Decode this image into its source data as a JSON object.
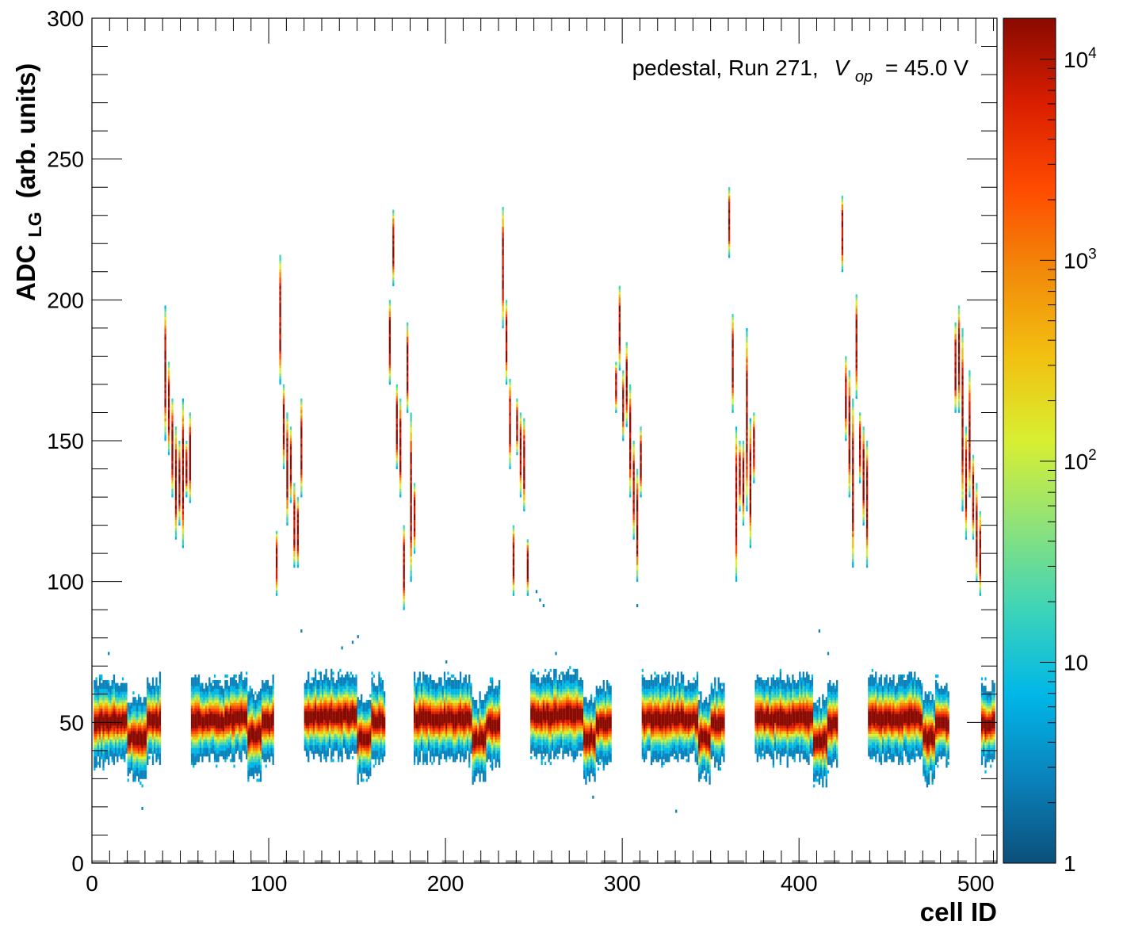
{
  "chart_data": {
    "type": "heatmap",
    "title": "",
    "annotation": {
      "text_prefix": "pedestal, Run 271,",
      "symbol": "V",
      "symbol_subscript": "op",
      "text_suffix": "= 45.0 V"
    },
    "xlabel": "cell ID",
    "ylabel_main": "ADC",
    "ylabel_sub": "LG",
    "ylabel_suffix": "(arb. units)",
    "xlim": [
      0,
      512
    ],
    "ylim": [
      0,
      300
    ],
    "x_tick_labels": [
      "0",
      "100",
      "200",
      "300",
      "400",
      "500"
    ],
    "y_tick_labels": [
      "0",
      "50",
      "100",
      "150",
      "200",
      "250",
      "300"
    ],
    "z_scale": "log",
    "zlim": [
      1,
      16000
    ],
    "colorbar_labels": [
      {
        "base": "1",
        "exp": ""
      },
      {
        "base": "10",
        "exp": ""
      },
      {
        "base": "10",
        "exp": "2"
      },
      {
        "base": "10",
        "exp": "3"
      },
      {
        "base": "10",
        "exp": "4"
      }
    ],
    "palette": [
      "#0b4f7a",
      "#0a82bb",
      "#00b7e8",
      "#3dd4b8",
      "#8ee27a",
      "#d8ef32",
      "#f2c010",
      "#f28a0a",
      "#ff4a00",
      "#d91e00",
      "#8a0a00"
    ],
    "pedestal_blocks": [
      {
        "x": [
          1,
          20
        ],
        "center": 50
      },
      {
        "x": [
          20,
          31
        ],
        "center": 44
      },
      {
        "x": [
          31,
          39
        ],
        "center": 50
      },
      {
        "x": [
          56,
          78
        ],
        "center": 50
      },
      {
        "x": [
          78,
          88
        ],
        "center": 51
      },
      {
        "x": [
          88,
          96
        ],
        "center": 45
      },
      {
        "x": [
          96,
          103
        ],
        "center": 50
      },
      {
        "x": [
          120,
          150
        ],
        "center": 52
      },
      {
        "x": [
          150,
          158
        ],
        "center": 44
      },
      {
        "x": [
          158,
          166
        ],
        "center": 50
      },
      {
        "x": [
          182,
          215
        ],
        "center": 51
      },
      {
        "x": [
          215,
          223
        ],
        "center": 44
      },
      {
        "x": [
          223,
          231
        ],
        "center": 49
      },
      {
        "x": [
          248,
          278
        ],
        "center": 52
      },
      {
        "x": [
          278,
          285
        ],
        "center": 44
      },
      {
        "x": [
          285,
          294
        ],
        "center": 49
      },
      {
        "x": [
          311,
          343
        ],
        "center": 51
      },
      {
        "x": [
          343,
          350
        ],
        "center": 44
      },
      {
        "x": [
          350,
          358
        ],
        "center": 49
      },
      {
        "x": [
          375,
          408
        ],
        "center": 51
      },
      {
        "x": [
          408,
          416
        ],
        "center": 43
      },
      {
        "x": [
          416,
          422
        ],
        "center": 49
      },
      {
        "x": [
          439,
          470
        ],
        "center": 51
      },
      {
        "x": [
          470,
          477
        ],
        "center": 44
      },
      {
        "x": [
          477,
          485
        ],
        "center": 49
      },
      {
        "x": [
          503,
          511
        ],
        "center": 49
      }
    ],
    "signal_streaks": [
      {
        "x": 41,
        "y": [
          150,
          198
        ]
      },
      {
        "x": 43,
        "y": [
          145,
          178
        ]
      },
      {
        "x": 45,
        "y": [
          130,
          165
        ]
      },
      {
        "x": 47,
        "y": [
          115,
          155
        ]
      },
      {
        "x": 49,
        "y": [
          120,
          150
        ]
      },
      {
        "x": 51,
        "y": [
          112,
          165
        ]
      },
      {
        "x": 53,
        "y": [
          130,
          150
        ]
      },
      {
        "x": 55,
        "y": [
          128,
          160
        ]
      },
      {
        "x": 104,
        "y": [
          95,
          118
        ]
      },
      {
        "x": 106,
        "y": [
          170,
          216
        ]
      },
      {
        "x": 108,
        "y": [
          140,
          170
        ]
      },
      {
        "x": 110,
        "y": [
          120,
          160
        ]
      },
      {
        "x": 112,
        "y": [
          128,
          155
        ]
      },
      {
        "x": 114,
        "y": [
          105,
          135
        ]
      },
      {
        "x": 116,
        "y": [
          105,
          130
        ]
      },
      {
        "x": 118,
        "y": [
          130,
          165
        ]
      },
      {
        "x": 168,
        "y": [
          170,
          200
        ]
      },
      {
        "x": 170,
        "y": [
          205,
          232
        ]
      },
      {
        "x": 172,
        "y": [
          140,
          170
        ]
      },
      {
        "x": 174,
        "y": [
          130,
          165
        ]
      },
      {
        "x": 176,
        "y": [
          90,
          120
        ]
      },
      {
        "x": 178,
        "y": [
          160,
          192
        ]
      },
      {
        "x": 180,
        "y": [
          100,
          160
        ]
      },
      {
        "x": 182,
        "y": [
          110,
          135
        ]
      },
      {
        "x": 232,
        "y": [
          190,
          233
        ]
      },
      {
        "x": 234,
        "y": [
          170,
          200
        ]
      },
      {
        "x": 236,
        "y": [
          140,
          172
        ]
      },
      {
        "x": 238,
        "y": [
          95,
          120
        ]
      },
      {
        "x": 240,
        "y": [
          145,
          165
        ]
      },
      {
        "x": 242,
        "y": [
          130,
          160
        ]
      },
      {
        "x": 244,
        "y": [
          125,
          158
        ]
      },
      {
        "x": 246,
        "y": [
          95,
          115
        ]
      },
      {
        "x": 296,
        "y": [
          160,
          178
        ]
      },
      {
        "x": 298,
        "y": [
          175,
          205
        ]
      },
      {
        "x": 300,
        "y": [
          150,
          175
        ]
      },
      {
        "x": 302,
        "y": [
          155,
          185
        ]
      },
      {
        "x": 304,
        "y": [
          130,
          170
        ]
      },
      {
        "x": 306,
        "y": [
          115,
          150
        ]
      },
      {
        "x": 308,
        "y": [
          100,
          140
        ]
      },
      {
        "x": 310,
        "y": [
          130,
          155
        ]
      },
      {
        "x": 360,
        "y": [
          215,
          240
        ]
      },
      {
        "x": 362,
        "y": [
          160,
          195
        ]
      },
      {
        "x": 364,
        "y": [
          100,
          155
        ]
      },
      {
        "x": 366,
        "y": [
          125,
          150
        ]
      },
      {
        "x": 368,
        "y": [
          120,
          150
        ]
      },
      {
        "x": 370,
        "y": [
          125,
          190
        ]
      },
      {
        "x": 372,
        "y": [
          112,
          158
        ]
      },
      {
        "x": 374,
        "y": [
          135,
          160
        ]
      },
      {
        "x": 424,
        "y": [
          210,
          237
        ]
      },
      {
        "x": 426,
        "y": [
          150,
          180
        ]
      },
      {
        "x": 428,
        "y": [
          130,
          175
        ]
      },
      {
        "x": 430,
        "y": [
          105,
          165
        ]
      },
      {
        "x": 432,
        "y": [
          165,
          202
        ]
      },
      {
        "x": 434,
        "y": [
          135,
          160
        ]
      },
      {
        "x": 436,
        "y": [
          120,
          155
        ]
      },
      {
        "x": 438,
        "y": [
          105,
          150
        ]
      },
      {
        "x": 488,
        "y": [
          160,
          192
        ]
      },
      {
        "x": 490,
        "y": [
          160,
          198
        ]
      },
      {
        "x": 492,
        "y": [
          125,
          190
        ]
      },
      {
        "x": 494,
        "y": [
          115,
          155
        ]
      },
      {
        "x": 496,
        "y": [
          130,
          175
        ]
      },
      {
        "x": 498,
        "y": [
          115,
          145
        ]
      },
      {
        "x": 500,
        "y": [
          100,
          135
        ]
      },
      {
        "x": 502,
        "y": [
          95,
          125
        ]
      }
    ],
    "outliers": [
      {
        "x": 9,
        "y": 74
      },
      {
        "x": 28,
        "y": 19
      },
      {
        "x": 118,
        "y": 82
      },
      {
        "x": 141,
        "y": 76
      },
      {
        "x": 147,
        "y": 78
      },
      {
        "x": 150,
        "y": 80
      },
      {
        "x": 200,
        "y": 71
      },
      {
        "x": 251,
        "y": 96
      },
      {
        "x": 253,
        "y": 93
      },
      {
        "x": 255,
        "y": 91
      },
      {
        "x": 262,
        "y": 74
      },
      {
        "x": 283,
        "y": 23
      },
      {
        "x": 308,
        "y": 91
      },
      {
        "x": 330,
        "y": 18
      },
      {
        "x": 411,
        "y": 82
      },
      {
        "x": 416,
        "y": 74
      }
    ],
    "zero_dashes": {
      "y": 0.5,
      "period": 18,
      "length": 9
    }
  }
}
